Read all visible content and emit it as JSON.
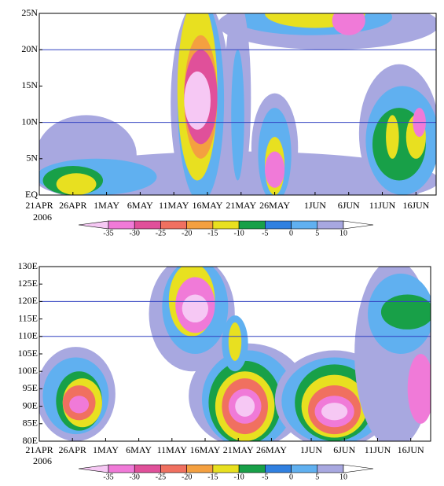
{
  "chart_data": [
    {
      "type": "contour",
      "year_label": "2006",
      "xlim": [
        "2006-04-21",
        "2006-06-19"
      ],
      "xticks": [
        {
          "value": "2006-04-21",
          "label": "21APR"
        },
        {
          "value": "2006-04-26",
          "label": "26APR"
        },
        {
          "value": "2006-05-01",
          "label": "1MAY"
        },
        {
          "value": "2006-05-06",
          "label": "6MAY"
        },
        {
          "value": "2006-05-11",
          "label": "11MAY"
        },
        {
          "value": "2006-05-16",
          "label": "16MAY"
        },
        {
          "value": "2006-05-21",
          "label": "21MAY"
        },
        {
          "value": "2006-05-26",
          "label": "26MAY"
        },
        {
          "value": "2006-06-01",
          "label": "1JUN"
        },
        {
          "value": "2006-06-06",
          "label": "6JUN"
        },
        {
          "value": "2006-06-11",
          "label": "11JUN"
        },
        {
          "value": "2006-06-16",
          "label": "16JUN"
        }
      ],
      "ylim": [
        0,
        25
      ],
      "yticks": [
        {
          "value": 0,
          "label": "EQ"
        },
        {
          "value": 5,
          "label": "5N"
        },
        {
          "value": 10,
          "label": "10N"
        },
        {
          "value": 15,
          "label": "15N"
        },
        {
          "value": 20,
          "label": "20N"
        },
        {
          "value": 25,
          "label": "25N"
        }
      ],
      "hlines": [
        10,
        20
      ],
      "hline_color": "#3040c0",
      "colorbar": {
        "levels": [
          -35,
          -30,
          -25,
          -20,
          -15,
          -10,
          -5,
          0,
          5,
          10
        ],
        "colors": [
          "#f6c8f4",
          "#f07ad8",
          "#e0509a",
          "#f07060",
          "#f4a040",
          "#e8e020",
          "#18a048",
          "#3080e0",
          "#60b0f0",
          "#a8a8e0",
          "#ffffff"
        ]
      },
      "regions": [
        {
          "level": 10,
          "x": [
            "2006-04-21",
            "2006-06-19"
          ],
          "y": [
            -2,
            6
          ]
        },
        {
          "level": 10,
          "x": [
            "2006-04-21",
            "2006-05-05"
          ],
          "y": [
            0,
            11
          ]
        },
        {
          "level": 5,
          "x": [
            "2006-04-21",
            "2006-05-08"
          ],
          "y": [
            0,
            5
          ]
        },
        {
          "level": -5,
          "x": [
            "2006-04-22",
            "2006-04-30"
          ],
          "y": [
            0,
            4
          ]
        },
        {
          "level": -10,
          "x": [
            "2006-04-24",
            "2006-04-29"
          ],
          "y": [
            0,
            3
          ]
        },
        {
          "level": 10,
          "x": [
            "2006-05-18",
            "2006-06-19"
          ],
          "y": [
            20,
            27
          ]
        },
        {
          "level": 5,
          "x": [
            "2006-05-20",
            "2006-06-12"
          ],
          "y": [
            22,
            27
          ]
        },
        {
          "level": -10,
          "x": [
            "2006-05-25",
            "2006-06-08"
          ],
          "y": [
            23,
            27
          ]
        },
        {
          "level": -30,
          "x": [
            "2006-06-04",
            "2006-06-08"
          ],
          "y": [
            22,
            26
          ]
        },
        {
          "level": 10,
          "x": [
            "2006-05-11",
            "2006-05-19"
          ],
          "y": [
            -2,
            27
          ]
        },
        {
          "level": 5,
          "x": [
            "2006-05-12",
            "2006-05-18"
          ],
          "y": [
            -1,
            27
          ]
        },
        {
          "level": -10,
          "x": [
            "2006-05-12",
            "2006-05-17"
          ],
          "y": [
            2,
            27
          ]
        },
        {
          "level": -15,
          "x": [
            "2006-05-13",
            "2006-05-17"
          ],
          "y": [
            5,
            22
          ]
        },
        {
          "level": -25,
          "x": [
            "2006-05-13",
            "2006-05-17"
          ],
          "y": [
            7,
            20
          ]
        },
        {
          "level": -35,
          "x": [
            "2006-05-13",
            "2006-05-16"
          ],
          "y": [
            9,
            17
          ]
        },
        {
          "level": 10,
          "x": [
            "2006-05-19",
            "2006-05-22"
          ],
          "y": [
            0,
            27
          ]
        },
        {
          "level": 5,
          "x": [
            "2006-05-20",
            "2006-05-21"
          ],
          "y": [
            2,
            20
          ]
        },
        {
          "level": 10,
          "x": [
            "2006-05-23",
            "2006-05-29"
          ],
          "y": [
            -1,
            14
          ]
        },
        {
          "level": 5,
          "x": [
            "2006-05-24",
            "2006-05-28"
          ],
          "y": [
            -1,
            12
          ]
        },
        {
          "level": -10,
          "x": [
            "2006-05-25",
            "2006-05-27"
          ],
          "y": [
            0,
            8
          ]
        },
        {
          "level": -30,
          "x": [
            "2006-05-25",
            "2006-05-27"
          ],
          "y": [
            1,
            6
          ]
        },
        {
          "level": 10,
          "x": [
            "2006-06-08",
            "2006-06-19"
          ],
          "y": [
            -1,
            18
          ]
        },
        {
          "level": 5,
          "x": [
            "2006-06-09",
            "2006-06-19"
          ],
          "y": [
            0,
            15
          ]
        },
        {
          "level": -5,
          "x": [
            "2006-06-10",
            "2006-06-17"
          ],
          "y": [
            2,
            12
          ]
        },
        {
          "level": -10,
          "x": [
            "2006-06-12",
            "2006-06-13"
          ],
          "y": [
            5,
            11
          ]
        },
        {
          "level": -10,
          "x": [
            "2006-06-15",
            "2006-06-17"
          ],
          "y": [
            5,
            11
          ]
        },
        {
          "level": -30,
          "x": [
            "2006-06-16",
            "2006-06-17"
          ],
          "y": [
            8,
            12
          ]
        }
      ]
    },
    {
      "type": "contour",
      "year_label": "2006",
      "xlim": [
        "2006-04-21",
        "2006-06-19"
      ],
      "xticks": [
        {
          "value": "2006-04-21",
          "label": "21APR"
        },
        {
          "value": "2006-04-26",
          "label": "26APR"
        },
        {
          "value": "2006-05-01",
          "label": "1MAY"
        },
        {
          "value": "2006-05-06",
          "label": "6MAY"
        },
        {
          "value": "2006-05-11",
          "label": "11MAY"
        },
        {
          "value": "2006-05-16",
          "label": "16MAY"
        },
        {
          "value": "2006-05-21",
          "label": "21MAY"
        },
        {
          "value": "2006-05-26",
          "label": "26MAY"
        },
        {
          "value": "2006-06-01",
          "label": "1JUN"
        },
        {
          "value": "2006-06-06",
          "label": "6JUN"
        },
        {
          "value": "2006-06-11",
          "label": "11JUN"
        },
        {
          "value": "2006-06-16",
          "label": "16JUN"
        }
      ],
      "ylim": [
        80,
        130
      ],
      "yticks": [
        {
          "value": 80,
          "label": "80E"
        },
        {
          "value": 85,
          "label": "85E"
        },
        {
          "value": 90,
          "label": "90E"
        },
        {
          "value": 95,
          "label": "95E"
        },
        {
          "value": 100,
          "label": "100E"
        },
        {
          "value": 105,
          "label": "105E"
        },
        {
          "value": 110,
          "label": "110E"
        },
        {
          "value": 115,
          "label": "115E"
        },
        {
          "value": 120,
          "label": "120E"
        },
        {
          "value": 125,
          "label": "125E"
        },
        {
          "value": 130,
          "label": "130E"
        }
      ],
      "hlines": [
        110,
        120
      ],
      "hline_color": "#3040c0",
      "colorbar": {
        "levels": [
          -35,
          -30,
          -25,
          -20,
          -15,
          -10,
          -5,
          0,
          5,
          10
        ],
        "colors": [
          "#f6c8f4",
          "#f07ad8",
          "#e0509a",
          "#f07060",
          "#f4a040",
          "#e8e020",
          "#18a048",
          "#3080e0",
          "#60b0f0",
          "#a8a8e0",
          "#ffffff"
        ]
      },
      "regions": [
        {
          "level": 10,
          "x": [
            "2006-04-21",
            "2006-05-02"
          ],
          "y": [
            80,
            107
          ]
        },
        {
          "level": 5,
          "x": [
            "2006-04-22",
            "2006-05-01"
          ],
          "y": [
            82,
            104
          ]
        },
        {
          "level": -5,
          "x": [
            "2006-04-24",
            "2006-04-30"
          ],
          "y": [
            83,
            100
          ]
        },
        {
          "level": -10,
          "x": [
            "2006-04-25",
            "2006-04-30"
          ],
          "y": [
            84,
            98
          ]
        },
        {
          "level": -20,
          "x": [
            "2006-04-25",
            "2006-04-29"
          ],
          "y": [
            86,
            96
          ]
        },
        {
          "level": -30,
          "x": [
            "2006-04-26",
            "2006-04-28"
          ],
          "y": [
            88,
            93
          ]
        },
        {
          "level": 10,
          "x": [
            "2006-05-08",
            "2006-05-20"
          ],
          "y": [
            100,
            133
          ]
        },
        {
          "level": 5,
          "x": [
            "2006-05-10",
            "2006-05-19"
          ],
          "y": [
            105,
            132
          ]
        },
        {
          "level": -10,
          "x": [
            "2006-05-11",
            "2006-05-17"
          ],
          "y": [
            110,
            131
          ]
        },
        {
          "level": -30,
          "x": [
            "2006-05-12",
            "2006-05-17"
          ],
          "y": [
            111,
            127
          ]
        },
        {
          "level": -35,
          "x": [
            "2006-05-13",
            "2006-05-16"
          ],
          "y": [
            114,
            122
          ]
        },
        {
          "level": 10,
          "x": [
            "2006-05-14",
            "2006-05-31"
          ],
          "y": [
            78,
            108
          ]
        },
        {
          "level": 5,
          "x": [
            "2006-05-16",
            "2006-05-29"
          ],
          "y": [
            78,
            106
          ]
        },
        {
          "level": -5,
          "x": [
            "2006-05-17",
            "2006-05-27"
          ],
          "y": [
            79,
            103
          ]
        },
        {
          "level": -10,
          "x": [
            "2006-05-18",
            "2006-05-26"
          ],
          "y": [
            80,
            100
          ]
        },
        {
          "level": -20,
          "x": [
            "2006-05-19",
            "2006-05-25"
          ],
          "y": [
            82,
            98
          ]
        },
        {
          "level": -30,
          "x": [
            "2006-05-20",
            "2006-05-24"
          ],
          "y": [
            85,
            95
          ]
        },
        {
          "level": -35,
          "x": [
            "2006-05-21",
            "2006-05-23"
          ],
          "y": [
            87,
            93
          ]
        },
        {
          "level": 5,
          "x": [
            "2006-05-19",
            "2006-05-22"
          ],
          "y": [
            100,
            116
          ]
        },
        {
          "level": -10,
          "x": [
            "2006-05-20",
            "2006-05-21"
          ],
          "y": [
            103,
            114
          ]
        },
        {
          "level": 10,
          "x": [
            "2006-05-27",
            "2006-06-13"
          ],
          "y": [
            78,
            106
          ]
        },
        {
          "level": 5,
          "x": [
            "2006-05-28",
            "2006-06-12"
          ],
          "y": [
            79,
            104
          ]
        },
        {
          "level": -5,
          "x": [
            "2006-05-30",
            "2006-06-10"
          ],
          "y": [
            80,
            102
          ]
        },
        {
          "level": -10,
          "x": [
            "2006-05-31",
            "2006-06-09"
          ],
          "y": [
            81,
            99
          ]
        },
        {
          "level": -20,
          "x": [
            "2006-06-01",
            "2006-06-08"
          ],
          "y": [
            82,
            96
          ]
        },
        {
          "level": -30,
          "x": [
            "2006-06-02",
            "2006-06-07"
          ],
          "y": [
            84,
            93
          ]
        },
        {
          "level": -35,
          "x": [
            "2006-06-03",
            "2006-06-06"
          ],
          "y": [
            86,
            91
          ]
        },
        {
          "level": 10,
          "x": [
            "2006-06-08",
            "2006-06-19"
          ],
          "y": [
            78,
            132
          ]
        },
        {
          "level": 5,
          "x": [
            "2006-06-10",
            "2006-06-19"
          ],
          "y": [
            105,
            128
          ]
        },
        {
          "level": -5,
          "x": [
            "2006-06-12",
            "2006-06-19"
          ],
          "y": [
            112,
            122
          ]
        },
        {
          "level": -30,
          "x": [
            "2006-06-16",
            "2006-06-19"
          ],
          "y": [
            85,
            105
          ]
        }
      ]
    }
  ]
}
